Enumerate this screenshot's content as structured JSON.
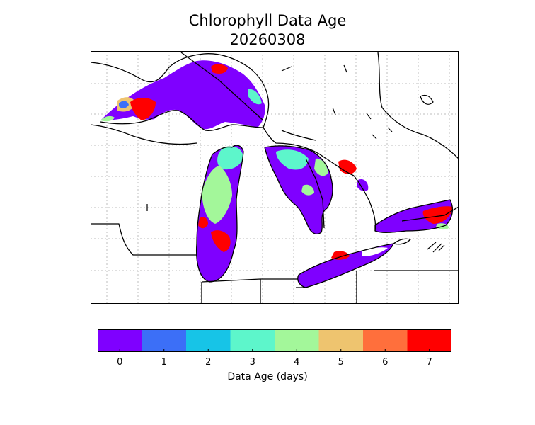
{
  "title_line1": "Chlorophyll Data Age",
  "title_line2": "20260308",
  "colorbar": {
    "label": "Data Age (days)",
    "ticks": [
      "0",
      "1",
      "2",
      "3",
      "4",
      "5",
      "6",
      "7"
    ],
    "colors": [
      "#7f00ff",
      "#3c6ff7",
      "#17c4e7",
      "#5df6cb",
      "#a3f79a",
      "#eec46f",
      "#ff6f3c",
      "#ff0000"
    ]
  },
  "map": {
    "region": "Great Lakes",
    "graticule": true,
    "lakes": [
      {
        "name": "Lake Superior",
        "dominant_age_days": 0,
        "other_ages_days": [
          1,
          3,
          5,
          7
        ]
      },
      {
        "name": "Lake Michigan",
        "dominant_age_days": 0,
        "other_ages_days": [
          3,
          4,
          7
        ]
      },
      {
        "name": "Lake Huron",
        "dominant_age_days": 0,
        "other_ages_days": [
          3,
          4,
          7
        ]
      },
      {
        "name": "Lake Erie",
        "dominant_age_days": 0,
        "other_ages_days": [
          7
        ]
      },
      {
        "name": "Lake Ontario",
        "dominant_age_days": 0,
        "other_ages_days": [
          4,
          7
        ]
      }
    ]
  }
}
